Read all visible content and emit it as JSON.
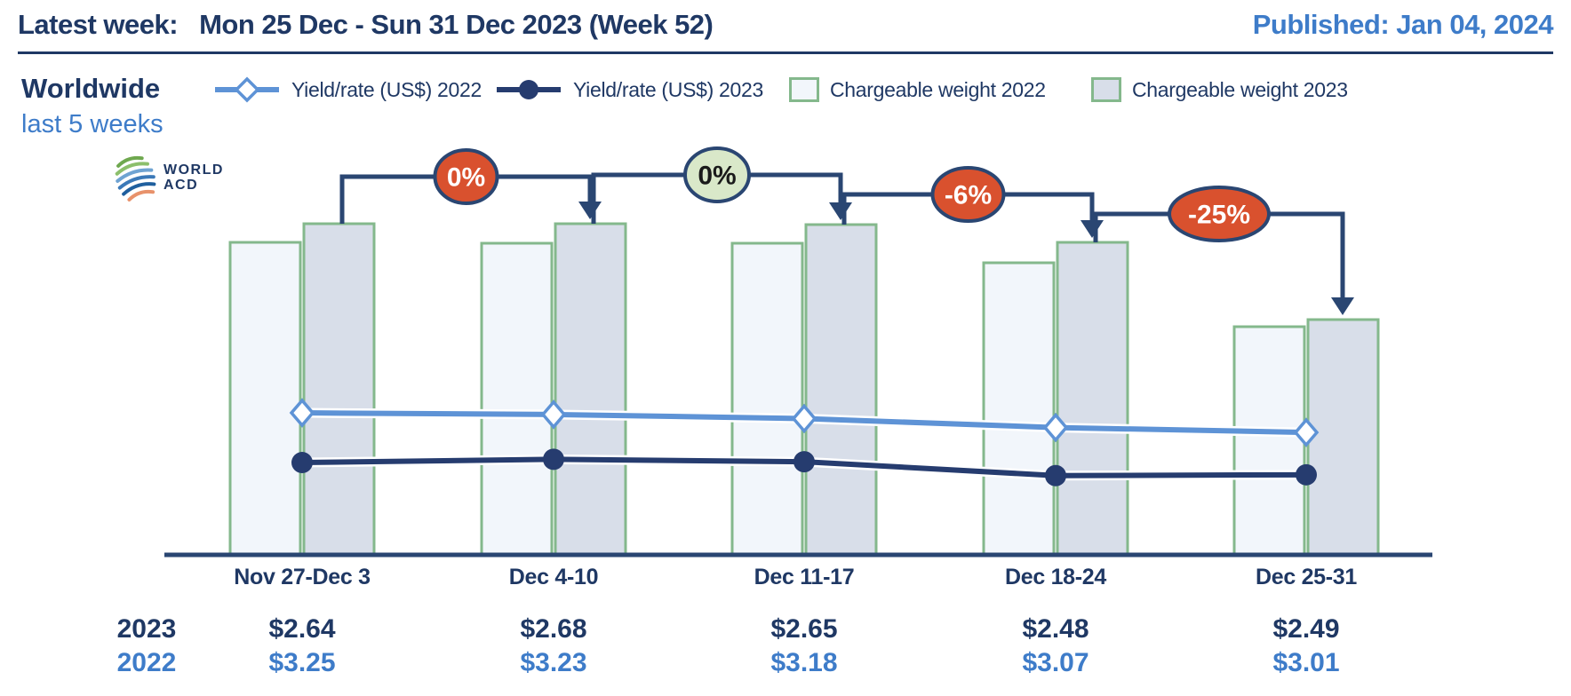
{
  "header": {
    "latest_week_label": "Latest week:",
    "latest_week_value": "Mon 25 Dec - Sun 31 Dec 2023 (Week 52)",
    "published": "Published: Jan 04, 2024"
  },
  "region": {
    "title": "Worldwide",
    "subtitle": "last 5 weeks"
  },
  "logo": {
    "line1": "WORLD",
    "line2": "ACD",
    "icon": "globe-arcs-icon"
  },
  "legend": {
    "items": [
      {
        "label": "Yield/rate (US$) 2022",
        "swatch": "line-diamond-lightblue"
      },
      {
        "label": "Yield/rate (US$) 2023",
        "swatch": "line-circle-navy"
      },
      {
        "label": "Chargeable weight 2022",
        "swatch": "box-light"
      },
      {
        "label": "Chargeable weight 2023",
        "swatch": "box-gray"
      }
    ]
  },
  "colors": {
    "navy_text": "#1F3864",
    "blue_text": "#3E7CC9",
    "line_2022": "#5E93D6",
    "line_2023": "#263C6F",
    "bar_2022_fill": "#F2F6FB",
    "bar_2023_fill": "#D8DEE9",
    "bar_border": "#84B88C",
    "arrow": "#2A4672",
    "badge_red": "#D9512E",
    "badge_green": "#D9E8C9",
    "badge_text_light": "#FFFFFF",
    "badge_text_dark": "#1A1A1A"
  },
  "chart_data": {
    "type": "bar+line",
    "title": "Worldwide last 5 weeks",
    "categories": [
      "Nov 27-Dec 3",
      "Dec 4-10",
      "Dec 11-17",
      "Dec 18-24",
      "Dec 25-31"
    ],
    "bar_series": [
      {
        "name": "Chargeable weight 2022",
        "unit": "relative-index",
        "values": [
          352,
          351,
          351,
          329,
          257
        ]
      },
      {
        "name": "Chargeable weight 2023",
        "unit": "relative-index",
        "values": [
          373,
          373,
          372,
          352,
          265
        ]
      }
    ],
    "line_series": [
      {
        "name": "Yield/rate (US$) 2022",
        "unit": "US$",
        "values": [
          3.25,
          3.23,
          3.18,
          3.07,
          3.01
        ]
      },
      {
        "name": "Yield/rate (US$) 2023",
        "unit": "US$",
        "values": [
          2.64,
          2.68,
          2.65,
          2.48,
          2.49
        ]
      }
    ],
    "change_badges": [
      {
        "label": "0%",
        "style": "red"
      },
      {
        "label": "0%",
        "style": "green"
      },
      {
        "label": "-6%",
        "style": "red"
      },
      {
        "label": "-25%",
        "style": "red"
      }
    ],
    "legend_position": "top",
    "grid": false,
    "y_axis_visible": false
  },
  "table": {
    "rows": [
      {
        "label": "2023",
        "color_key": "navy_text",
        "values": [
          "$2.64",
          "$2.68",
          "$2.65",
          "$2.48",
          "$2.49"
        ]
      },
      {
        "label": "2022",
        "color_key": "blue_text",
        "values": [
          "$3.25",
          "$3.23",
          "$3.18",
          "$3.07",
          "$3.01"
        ]
      }
    ]
  }
}
